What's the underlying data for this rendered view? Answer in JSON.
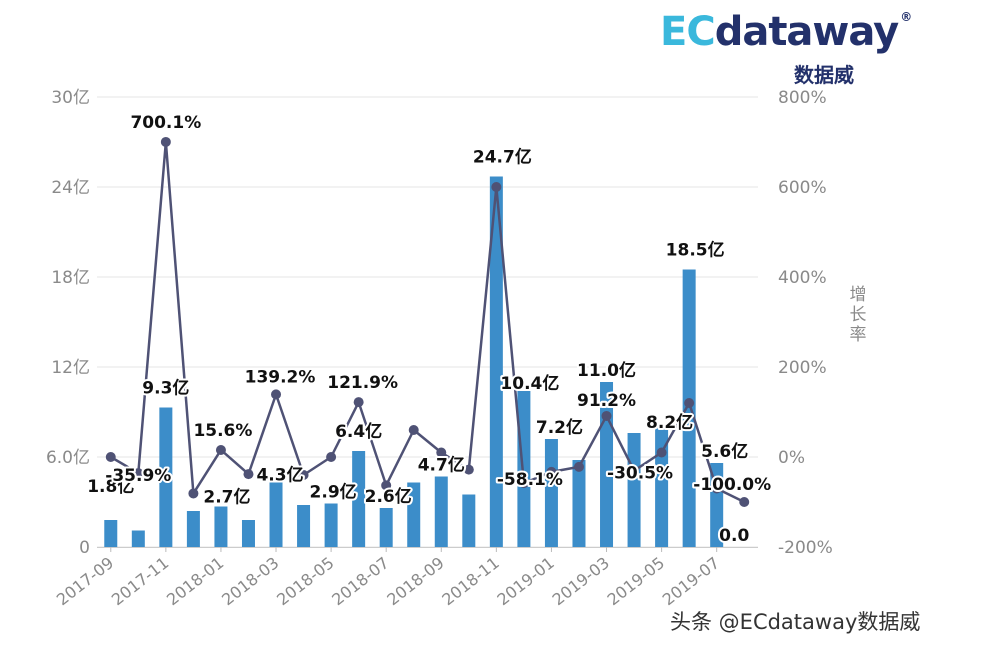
{
  "brand": {
    "logo_ec": "EC",
    "logo_rest": "dataway",
    "logo_reg": "®",
    "subtitle": "数据威"
  },
  "watermark": "头条 @ECdataway数据威",
  "colors": {
    "bar": "#3c8dc9",
    "line": "#4f5275",
    "grid": "#e6e6e6",
    "axis_text": "#8a8a8a",
    "brand_cyan": "#3ab8dc",
    "brand_navy": "#23316b"
  },
  "chart_data": {
    "type": "bar",
    "categories": [
      "2017-09",
      "2017-10",
      "2017-11",
      "2017-12",
      "2018-01",
      "2018-02",
      "2018-03",
      "2018-04",
      "2018-05",
      "2018-06",
      "2018-07",
      "2018-08",
      "2018-09",
      "2018-10",
      "2018-11",
      "2018-12",
      "2019-01",
      "2019-02",
      "2019-03",
      "2019-04",
      "2019-05",
      "2019-06",
      "2019-07",
      "2019-08"
    ],
    "x_tick_labels": [
      "2017-09",
      "2017-11",
      "2018-01",
      "2018-03",
      "2018-05",
      "2018-07",
      "2018-09",
      "2018-11",
      "2019-01",
      "2019-03",
      "2019-05",
      "2019-07"
    ],
    "series": [
      {
        "type": "bar",
        "axis": "left",
        "values": [
          1.8,
          1.1,
          9.3,
          2.4,
          2.7,
          1.8,
          4.3,
          2.8,
          2.9,
          6.4,
          2.6,
          4.3,
          4.7,
          3.5,
          24.7,
          10.4,
          7.2,
          5.8,
          11.0,
          7.6,
          8.2,
          18.5,
          5.6,
          0.0
        ]
      },
      {
        "type": "line",
        "axis": "right",
        "values": [
          0,
          -35.9,
          700.1,
          -81.0,
          15.6,
          -38.0,
          139.2,
          -40.0,
          0,
          121.9,
          -63.0,
          60.0,
          10.0,
          -28.0,
          600.0,
          -58.1,
          -33.0,
          -22.0,
          91.2,
          -30.5,
          10.0,
          120.0,
          -70.0,
          -100.0
        ]
      }
    ],
    "bar_labels": [
      {
        "index": 0,
        "text": "1.8亿"
      },
      {
        "index": 2,
        "text": "9.3亿"
      },
      {
        "index": 4,
        "text": "2.7亿"
      },
      {
        "index": 6,
        "text": "4.3亿"
      },
      {
        "index": 8,
        "text": "2.9亿"
      },
      {
        "index": 9,
        "text": "6.4亿"
      },
      {
        "index": 10,
        "text": "2.6亿"
      },
      {
        "index": 12,
        "text": "4.7亿"
      },
      {
        "index": 14,
        "text": "24.7亿"
      },
      {
        "index": 15,
        "text": "10.4亿"
      },
      {
        "index": 16,
        "text": "7.2亿"
      },
      {
        "index": 18,
        "text": "11.0亿"
      },
      {
        "index": 20,
        "text": "8.2亿"
      },
      {
        "index": 21,
        "text": "18.5亿"
      },
      {
        "index": 22,
        "text": "5.6亿"
      },
      {
        "index": 23,
        "text": "0.0"
      }
    ],
    "line_labels": [
      {
        "index": 1,
        "text": "-35.9%"
      },
      {
        "index": 2,
        "text": "700.1%"
      },
      {
        "index": 4,
        "text": "15.6%"
      },
      {
        "index": 6,
        "text": "139.2%"
      },
      {
        "index": 9,
        "text": "121.9%"
      },
      {
        "index": 15,
        "text": "-58.1%"
      },
      {
        "index": 18,
        "text": "91.2%"
      },
      {
        "index": 19,
        "text": "-30.5%"
      },
      {
        "index": 23,
        "text": "-100.0%"
      }
    ],
    "y_left": {
      "ticks": [
        "0",
        "6.0亿",
        "12亿",
        "18亿",
        "24亿",
        "30亿"
      ],
      "tick_values": [
        0,
        6,
        12,
        18,
        24,
        30
      ],
      "ylim": [
        0,
        30
      ]
    },
    "y_right": {
      "label": "增长率",
      "ticks": [
        "-200%",
        "0%",
        "200%",
        "400%",
        "600%",
        "800%"
      ],
      "tick_values": [
        -200,
        0,
        200,
        400,
        600,
        800
      ],
      "ylim": [
        -200,
        800
      ]
    },
    "grid": true,
    "legend": "none"
  }
}
